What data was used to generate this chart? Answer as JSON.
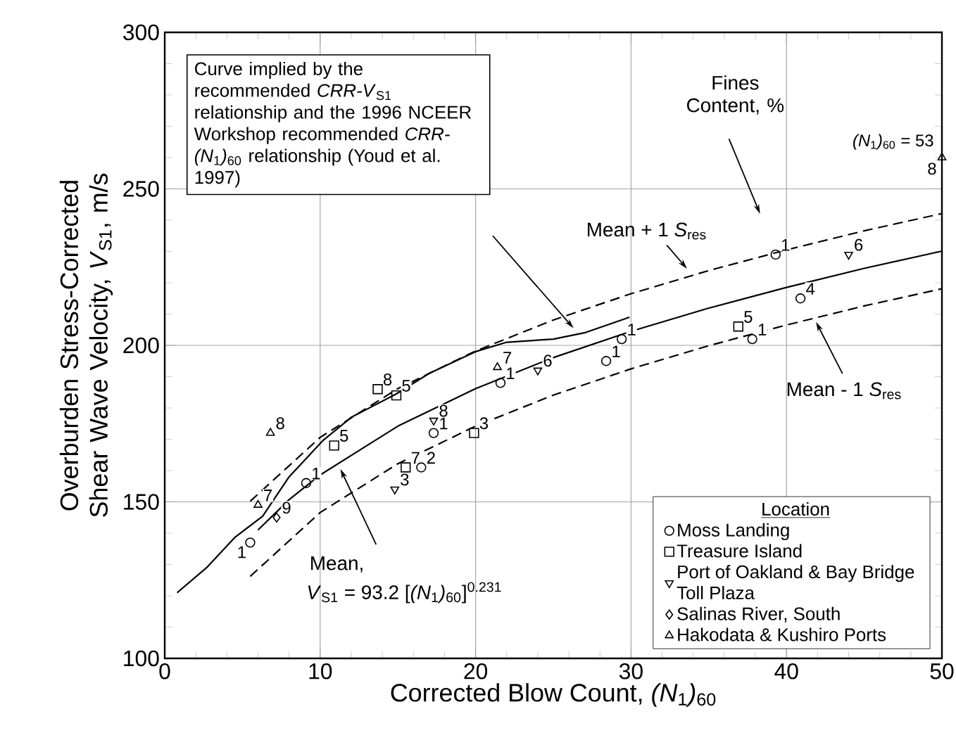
{
  "chart_data": {
    "type": "scatter",
    "xlabel": "Corrected Blow Count, *(N*$_{1}$*)*$_{60}$",
    "ylabel": "Overburden Stress-Corrected Shear Wave Velocity, *V*$_{S1}$, m/s",
    "legend_title": "Location",
    "xlim": [
      0,
      50
    ],
    "ylim": [
      100,
      300
    ],
    "xticks": [
      0,
      10,
      20,
      30,
      40,
      50
    ],
    "yticks": [
      100,
      150,
      200,
      250,
      300
    ],
    "grid": true,
    "legend": "bottom right",
    "series": [
      {
        "name": "Moss Landing",
        "color": "#000000",
        "marker": "circle",
        "x": [
          5.5,
          9.1,
          16.5,
          17.3,
          21.6,
          29.4,
          28.4,
          37.8,
          40.9,
          39.3
        ],
        "values": [
          137,
          156,
          161,
          172,
          188,
          202,
          195,
          202,
          215,
          229
        ]
      },
      {
        "name": "Treasure Island",
        "color": "#000000",
        "marker": "square",
        "x": [
          13.7,
          14.9,
          10.9,
          15.5,
          19.9,
          36.9
        ],
        "values": [
          186,
          184,
          168,
          161,
          172,
          206
        ]
      },
      {
        "name": "Port of Oakland & Bay Bridge Toll Plaza",
        "color": "#000000",
        "marker": "triangle-down",
        "x": [
          14.8,
          17.3,
          24.0,
          44.0
        ],
        "values": [
          154,
          176,
          192,
          229
        ]
      },
      {
        "name": "Salinas River, South",
        "color": "#000000",
        "marker": "diamond",
        "x": [
          7.2
        ],
        "values": [
          145
        ]
      },
      {
        "name": "Hakodata & Kushiro Ports",
        "color": "#000000",
        "marker": "triangle",
        "x": [
          6.0,
          6.8,
          21.4,
          50
        ],
        "values": [
          149,
          172,
          193,
          260
        ]
      },
      {
        "type": "line",
        "color": "#000000",
        "line_style": "solid",
        "marker": "none",
        "x": [
          6,
          8,
          10,
          15,
          20,
          25,
          30,
          35,
          40,
          45,
          50
        ],
        "values": [
          141,
          150.7,
          158.6,
          174.2,
          186.2,
          196.1,
          204.5,
          211.9,
          218.5,
          224.6,
          230.1
        ]
      },
      {
        "type": "line",
        "color": "#000000",
        "line_style": "dashed",
        "marker": "none",
        "x": [
          5.5,
          10,
          15,
          20,
          25,
          30,
          35,
          40,
          45,
          50
        ],
        "values": [
          150.2,
          170.6,
          186.2,
          198.2,
          208.1,
          216.5,
          223.9,
          230.5,
          236.6,
          242.1
        ]
      },
      {
        "type": "line",
        "color": "#000000",
        "line_style": "dashed",
        "marker": "none",
        "x": [
          5.5,
          10,
          15,
          20,
          25,
          30,
          35,
          40,
          45,
          50
        ],
        "values": [
          126.2,
          146.6,
          162.2,
          174.2,
          184.1,
          192.5,
          199.9,
          206.5,
          212.6,
          218.1
        ]
      },
      {
        "type": "line",
        "color": "#000000",
        "line_style": "solid",
        "marker": "none",
        "x": [
          0.8,
          2.7,
          4.5,
          6.3,
          8,
          10.2,
          12,
          14.9,
          17,
          20,
          22,
          25,
          27,
          29.9
        ],
        "values": [
          121,
          129,
          138.6,
          145.4,
          158,
          169.7,
          177,
          184.5,
          191,
          198,
          201,
          202,
          204,
          209
        ]
      }
    ],
    "annotations": [
      "Curve implied by the recommended *CRR-V*$_{S1}$ relationship and the 1996 NCEER Workshop recommended *CRR-(N*$_{1}$*)*$_{60}$ relationship (Youd et al. 1997)",
      "Fines Content, %",
      "Mean + 1 *S*$_{res}$",
      {
        "text": "Mean - 1 *S*$_{res}$",
        "x": 41.9,
        "y": 207.5
      },
      {
        "text": "Mean,",
        "x": 11.3,
        "y": 160.5
      },
      "*V*$_{S1}$ = 93.2 [*(N*$_{1}$*)*$_{60}$]$^{0.231}$",
      "*(N*$_{1}$*)*$_{60}$ = 53",
      {
        "text": "1",
        "x": 5.5,
        "y": 137
      },
      {
        "text": "1",
        "x": 9.1,
        "y": 156
      },
      {
        "text": "2",
        "x": 16.5,
        "y": 161
      },
      {
        "text": "1",
        "x": 17.3,
        "y": 172
      },
      {
        "text": "1",
        "x": 21.6,
        "y": 188
      },
      {
        "text": "1",
        "x": 29.4,
        "y": 202
      },
      {
        "text": "1",
        "x": 28.4,
        "y": 195
      },
      {
        "text": "1",
        "x": 37.8,
        "y": 202
      },
      {
        "text": "4",
        "x": 40.9,
        "y": 215
      },
      {
        "text": "1",
        "x": 39.3,
        "y": 229
      },
      {
        "text": "8",
        "x": 13.7,
        "y": 186
      },
      {
        "text": "5",
        "x": 14.9,
        "y": 184
      },
      {
        "text": "5",
        "x": 10.9,
        "y": 168
      },
      {
        "text": "7",
        "x": 15.5,
        "y": 161
      },
      {
        "text": "3",
        "x": 19.9,
        "y": 172
      },
      {
        "text": "5",
        "x": 36.9,
        "y": 206
      },
      {
        "text": "3",
        "x": 14.8,
        "y": 154
      },
      {
        "text": "8",
        "x": 17.3,
        "y": 176
      },
      {
        "text": "6",
        "x": 24.0,
        "y": 192
      },
      {
        "text": "6",
        "x": 44.0,
        "y": 229
      },
      {
        "text": "9",
        "x": 7.2,
        "y": 145
      },
      {
        "text": "7",
        "x": 6.0,
        "y": 149
      },
      {
        "text": "8",
        "x": 6.8,
        "y": 172
      },
      {
        "text": "7",
        "x": 21.4,
        "y": 193
      },
      {
        "text": "8",
        "x": 50,
        "y": 260
      }
    ]
  }
}
